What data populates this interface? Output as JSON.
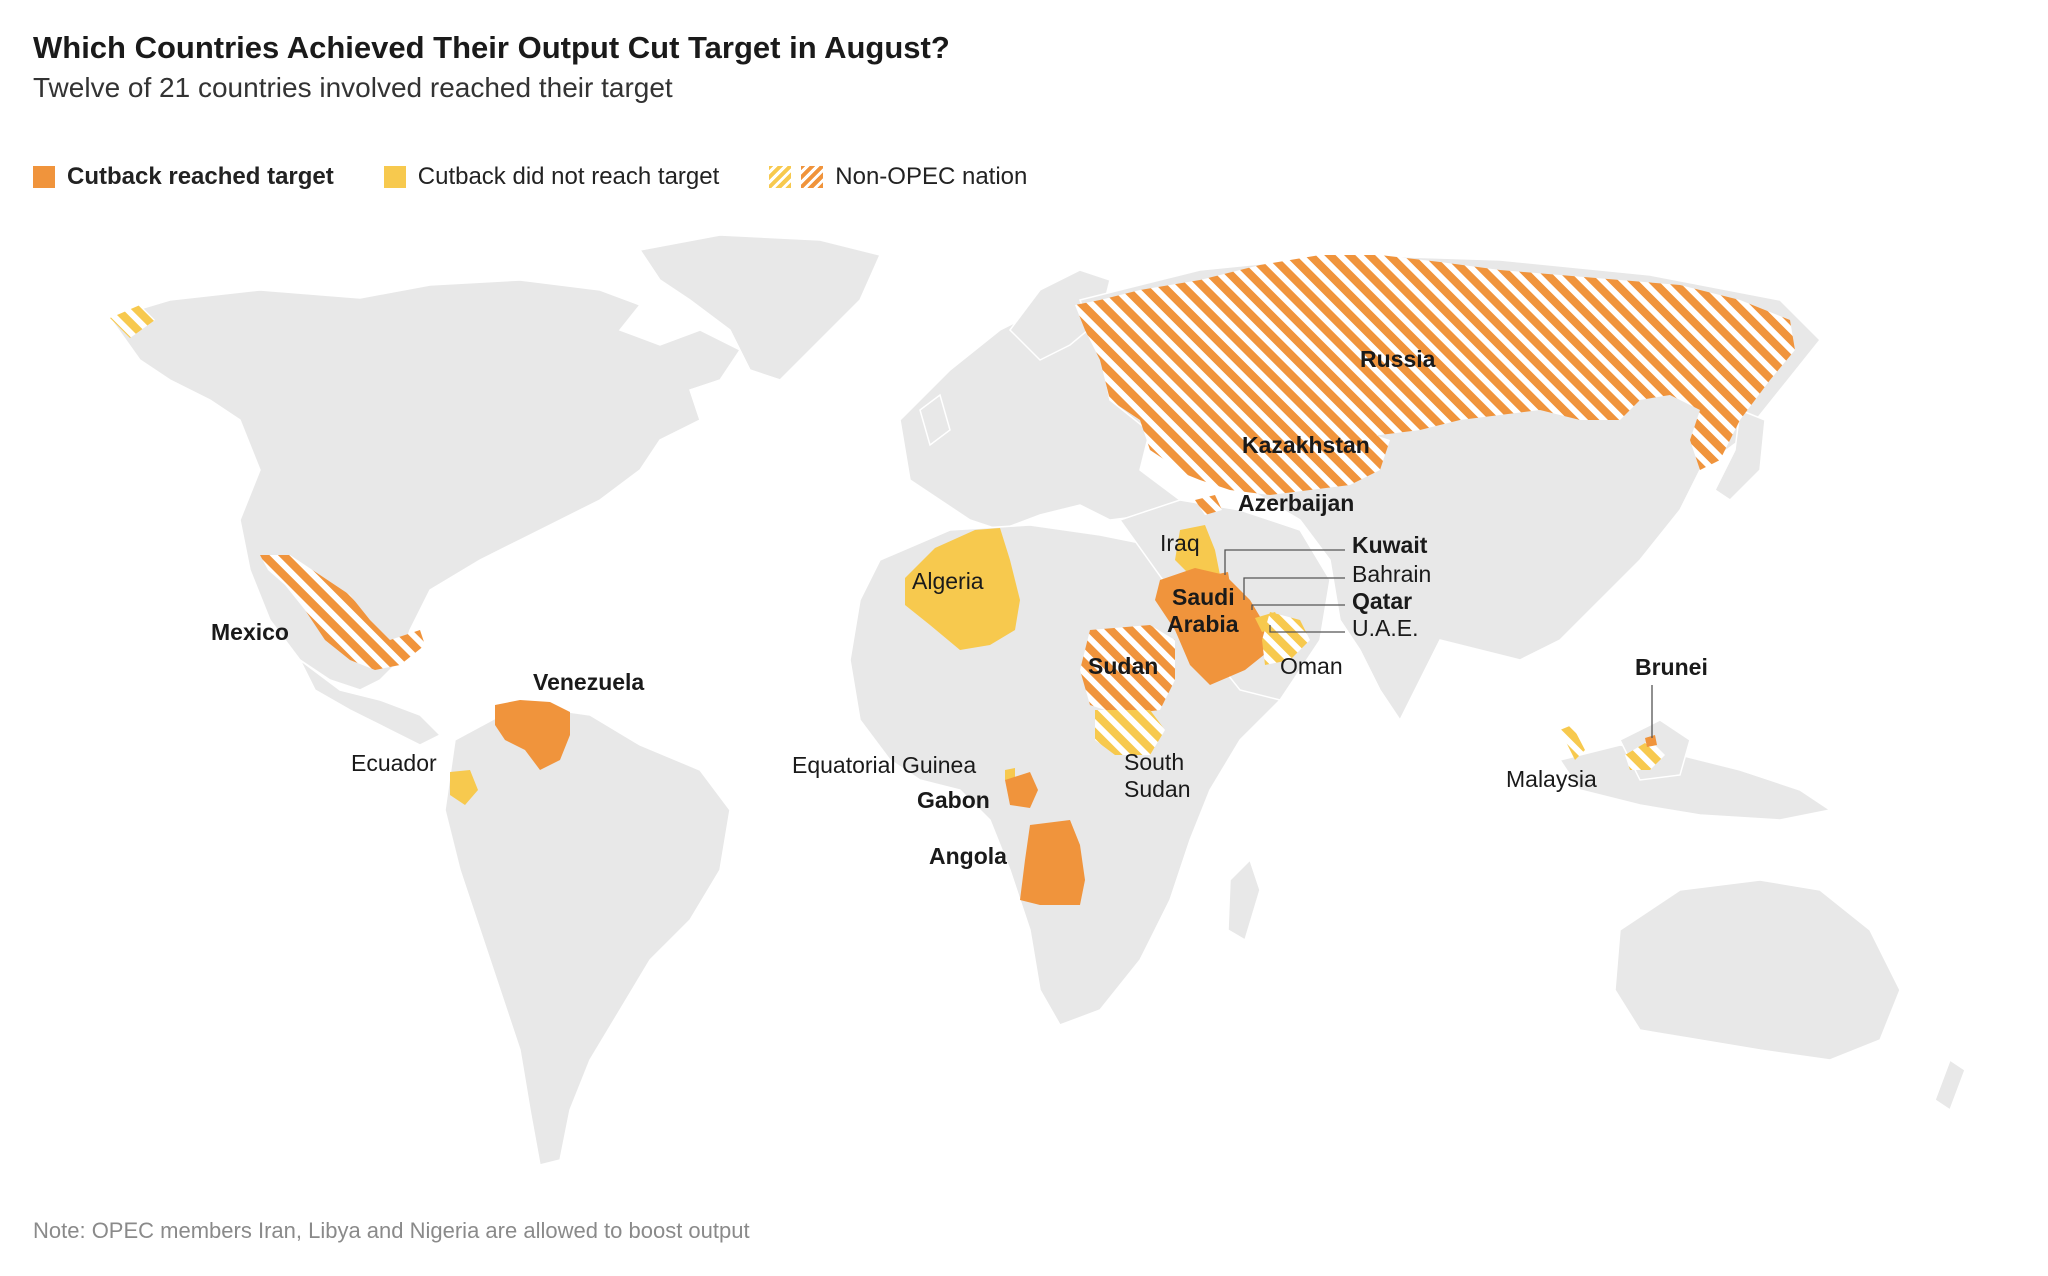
{
  "title": "Which Countries Achieved Their Output Cut Target in August?",
  "subtitle": "Twelve of 21 countries involved reached their target",
  "legend": {
    "reached": "Cutback reached target",
    "missed": "Cutback did not reach target",
    "non_opec": "Non-OPEC nation"
  },
  "colors": {
    "reached": "#f0943c",
    "missed": "#f7c94e",
    "land": "#e8e8e8",
    "border": "#ffffff"
  },
  "countries": {
    "russia": {
      "name": "Russia",
      "status": "reached",
      "non_opec": true
    },
    "kazakhstan": {
      "name": "Kazakhstan",
      "status": "reached",
      "non_opec": true
    },
    "azerbaijan": {
      "name": "Azerbaijan",
      "status": "reached",
      "non_opec": true
    },
    "iraq": {
      "name": "Iraq",
      "status": "missed",
      "non_opec": false
    },
    "kuwait": {
      "name": "Kuwait",
      "status": "reached",
      "non_opec": false
    },
    "bahrain": {
      "name": "Bahrain",
      "status": "missed",
      "non_opec": true
    },
    "qatar": {
      "name": "Qatar",
      "status": "reached",
      "non_opec": false
    },
    "uae": {
      "name": "U.A.E.",
      "status": "missed",
      "non_opec": false
    },
    "saudi_1": "Saudi",
    "saudi_2": "Arabia",
    "oman": {
      "name": "Oman",
      "status": "missed",
      "non_opec": true
    },
    "algeria": {
      "name": "Algeria",
      "status": "missed",
      "non_opec": false
    },
    "mexico": {
      "name": "Mexico",
      "status": "reached",
      "non_opec": true
    },
    "venezuela": {
      "name": "Venezuela",
      "status": "reached",
      "non_opec": false
    },
    "ecuador": {
      "name": "Ecuador",
      "status": "missed",
      "non_opec": false
    },
    "sudan": {
      "name": "Sudan",
      "status": "reached",
      "non_opec": true
    },
    "south_sudan_1": "South",
    "south_sudan_2": "Sudan",
    "eq_guinea": {
      "name": "Equatorial Guinea",
      "status": "missed",
      "non_opec": false
    },
    "gabon": {
      "name": "Gabon",
      "status": "reached",
      "non_opec": false
    },
    "angola": {
      "name": "Angola",
      "status": "reached",
      "non_opec": false
    },
    "malaysia": {
      "name": "Malaysia",
      "status": "missed",
      "non_opec": true
    },
    "brunei": {
      "name": "Brunei",
      "status": "reached",
      "non_opec": true
    }
  },
  "note": "Note: OPEC members Iran, Libya and Nigeria are allowed to boost output"
}
